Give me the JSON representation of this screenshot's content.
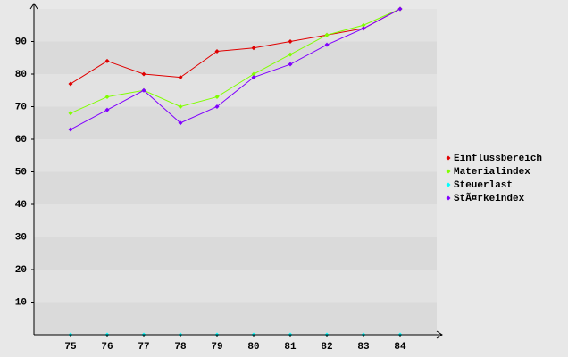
{
  "chart_data": {
    "type": "line",
    "x": [
      75,
      76,
      77,
      78,
      79,
      80,
      81,
      82,
      83,
      84
    ],
    "xlim": [
      74,
      85
    ],
    "xticks": [
      75,
      76,
      77,
      78,
      79,
      80,
      81,
      82,
      83,
      84
    ],
    "ylim": [
      0,
      100
    ],
    "yticks": [
      10,
      20,
      30,
      40,
      50,
      60,
      70,
      80,
      90
    ],
    "legend": "right",
    "series": [
      {
        "name": "Einflussbereich",
        "color": "#e00000",
        "values": [
          77,
          84,
          80,
          79,
          87,
          88,
          90,
          92,
          94,
          100
        ]
      },
      {
        "name": "Materialindex",
        "color": "#80ff00",
        "values": [
          68,
          73,
          75,
          70,
          73,
          80,
          86,
          92,
          95,
          100
        ]
      },
      {
        "name": "Steuerlast",
        "color": "#00ffff",
        "values": [
          0,
          0,
          0,
          0,
          0,
          0,
          0,
          0,
          0,
          0
        ]
      },
      {
        "name": "StÃ¤rkeindex",
        "color": "#8000ff",
        "values": [
          63,
          69,
          75,
          65,
          70,
          79,
          83,
          89,
          94,
          100
        ]
      }
    ]
  }
}
